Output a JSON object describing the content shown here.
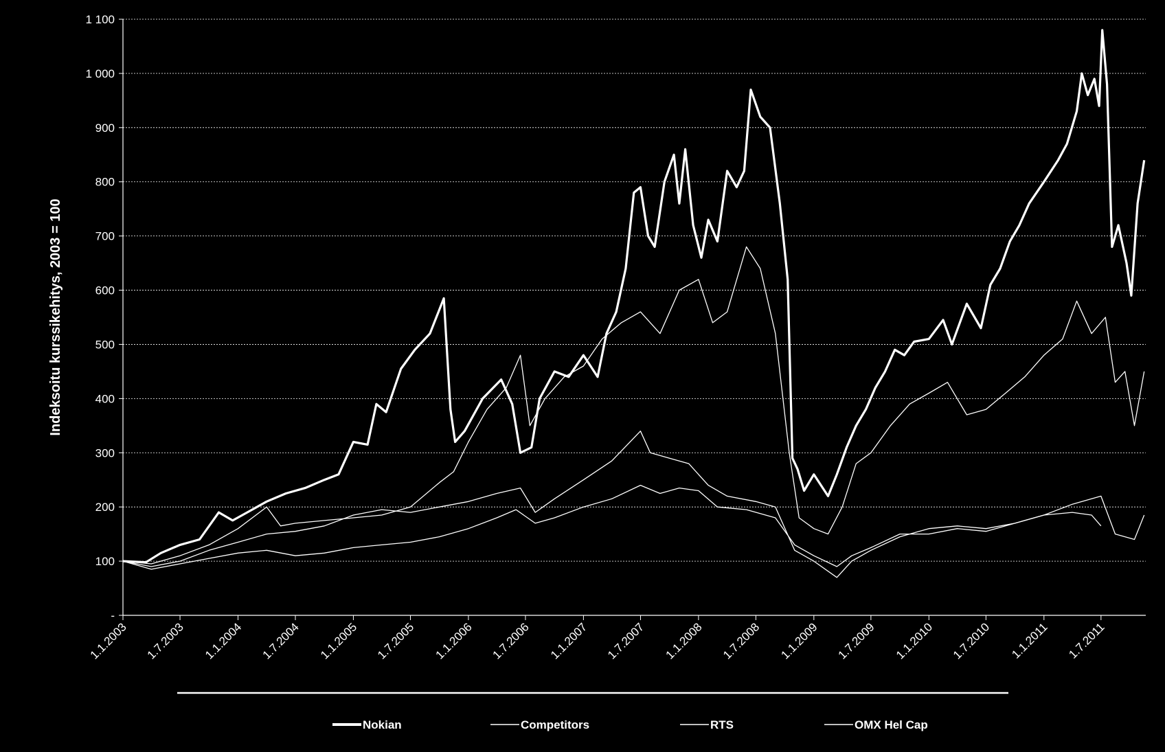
{
  "chart_data": {
    "type": "line",
    "title": "",
    "xlabel": "",
    "ylabel": "Indeksoitu kurssikehitys, 2003 = 100",
    "ylim": [
      0,
      1100
    ],
    "y_ticks": [
      {
        "value": 0,
        "label": "-"
      },
      {
        "value": 100,
        "label": "100"
      },
      {
        "value": 200,
        "label": "200"
      },
      {
        "value": 300,
        "label": "300"
      },
      {
        "value": 400,
        "label": "400"
      },
      {
        "value": 500,
        "label": "500"
      },
      {
        "value": 600,
        "label": "600"
      },
      {
        "value": 700,
        "label": "700"
      },
      {
        "value": 800,
        "label": "800"
      },
      {
        "value": 900,
        "label": "900"
      },
      {
        "value": 1000,
        "label": "1 000"
      },
      {
        "value": 1100,
        "label": "1 100"
      }
    ],
    "xlim": [
      "2003-01-01",
      "2011-11-20"
    ],
    "x_ticks": [
      {
        "date": "2003-01-01",
        "label": "1.1.2003"
      },
      {
        "date": "2003-07-01",
        "label": "1.7.2003"
      },
      {
        "date": "2004-01-01",
        "label": "1.1.2004"
      },
      {
        "date": "2004-07-01",
        "label": "1.7.2004"
      },
      {
        "date": "2005-01-01",
        "label": "1.1.2005"
      },
      {
        "date": "2005-07-01",
        "label": "1.7.2005"
      },
      {
        "date": "2006-01-01",
        "label": "1.1.2006"
      },
      {
        "date": "2006-07-01",
        "label": "1.7.2006"
      },
      {
        "date": "2007-01-01",
        "label": "1.1.2007"
      },
      {
        "date": "2007-07-01",
        "label": "1.7.2007"
      },
      {
        "date": "2008-01-01",
        "label": "1.1.2008"
      },
      {
        "date": "2008-07-01",
        "label": "1.7.2008"
      },
      {
        "date": "2009-01-01",
        "label": "1.1.2009"
      },
      {
        "date": "2009-07-01",
        "label": "1.7.2009"
      },
      {
        "date": "2010-01-01",
        "label": "1.1.2010"
      },
      {
        "date": "2010-07-01",
        "label": "1.7.2010"
      },
      {
        "date": "2011-01-01",
        "label": "1.1.2011"
      },
      {
        "date": "2011-07-01",
        "label": "1.7.2011"
      }
    ],
    "grid": "horizontal",
    "legend_position": "bottom",
    "line_color": "#ffffff",
    "series": [
      {
        "name": "Nokian",
        "stroke_weight": "thick",
        "points": [
          [
            "2003-01-01",
            100
          ],
          [
            "2003-03-15",
            98
          ],
          [
            "2003-05-01",
            115
          ],
          [
            "2003-07-01",
            130
          ],
          [
            "2003-09-01",
            140
          ],
          [
            "2003-11-01",
            190
          ],
          [
            "2003-12-15",
            175
          ],
          [
            "2004-02-15",
            195
          ],
          [
            "2004-04-01",
            210
          ],
          [
            "2004-06-01",
            225
          ],
          [
            "2004-08-01",
            235
          ],
          [
            "2004-10-01",
            250
          ],
          [
            "2004-11-15",
            260
          ],
          [
            "2005-01-01",
            320
          ],
          [
            "2005-02-15",
            315
          ],
          [
            "2005-03-15",
            390
          ],
          [
            "2005-04-15",
            375
          ],
          [
            "2005-06-01",
            455
          ],
          [
            "2005-07-15",
            490
          ],
          [
            "2005-09-01",
            520
          ],
          [
            "2005-10-15",
            585
          ],
          [
            "2005-11-05",
            380
          ],
          [
            "2005-11-20",
            320
          ],
          [
            "2005-12-20",
            340
          ],
          [
            "2006-02-15",
            400
          ],
          [
            "2006-04-15",
            435
          ],
          [
            "2006-05-20",
            390
          ],
          [
            "2006-06-15",
            300
          ],
          [
            "2006-07-20",
            310
          ],
          [
            "2006-08-15",
            400
          ],
          [
            "2006-10-01",
            450
          ],
          [
            "2006-11-15",
            440
          ],
          [
            "2007-01-01",
            480
          ],
          [
            "2007-02-15",
            440
          ],
          [
            "2007-03-15",
            520
          ],
          [
            "2007-04-15",
            560
          ],
          [
            "2007-05-15",
            640
          ],
          [
            "2007-06-10",
            780
          ],
          [
            "2007-07-01",
            790
          ],
          [
            "2007-07-25",
            700
          ],
          [
            "2007-08-15",
            680
          ],
          [
            "2007-09-15",
            800
          ],
          [
            "2007-10-15",
            850
          ],
          [
            "2007-11-01",
            760
          ],
          [
            "2007-11-20",
            860
          ],
          [
            "2007-12-15",
            720
          ],
          [
            "2008-01-10",
            660
          ],
          [
            "2008-02-01",
            730
          ],
          [
            "2008-03-01",
            690
          ],
          [
            "2008-04-01",
            820
          ],
          [
            "2008-05-01",
            790
          ],
          [
            "2008-05-25",
            820
          ],
          [
            "2008-06-15",
            970
          ],
          [
            "2008-07-15",
            920
          ],
          [
            "2008-08-15",
            900
          ],
          [
            "2008-09-15",
            760
          ],
          [
            "2008-10-10",
            620
          ],
          [
            "2008-10-25",
            290
          ],
          [
            "2008-11-10",
            270
          ],
          [
            "2008-12-01",
            230
          ],
          [
            "2009-01-01",
            260
          ],
          [
            "2009-02-15",
            220
          ],
          [
            "2009-03-15",
            260
          ],
          [
            "2009-04-15",
            310
          ],
          [
            "2009-05-15",
            350
          ],
          [
            "2009-06-15",
            380
          ],
          [
            "2009-07-15",
            420
          ],
          [
            "2009-08-15",
            450
          ],
          [
            "2009-09-15",
            490
          ],
          [
            "2009-10-15",
            480
          ],
          [
            "2009-11-15",
            505
          ],
          [
            "2010-01-01",
            510
          ],
          [
            "2010-02-15",
            545
          ],
          [
            "2010-03-15",
            500
          ],
          [
            "2010-05-01",
            575
          ],
          [
            "2010-06-15",
            530
          ],
          [
            "2010-07-15",
            610
          ],
          [
            "2010-08-15",
            640
          ],
          [
            "2010-09-15",
            690
          ],
          [
            "2010-10-15",
            720
          ],
          [
            "2010-11-15",
            760
          ],
          [
            "2011-01-01",
            800
          ],
          [
            "2011-02-15",
            840
          ],
          [
            "2011-03-15",
            870
          ],
          [
            "2011-04-15",
            930
          ],
          [
            "2011-05-01",
            1000
          ],
          [
            "2011-05-20",
            960
          ],
          [
            "2011-06-10",
            990
          ],
          [
            "2011-06-25",
            940
          ],
          [
            "2011-07-05",
            1080
          ],
          [
            "2011-07-20",
            980
          ],
          [
            "2011-08-05",
            680
          ],
          [
            "2011-08-25",
            720
          ],
          [
            "2011-09-20",
            650
          ],
          [
            "2011-10-05",
            590
          ],
          [
            "2011-10-25",
            760
          ],
          [
            "2011-11-15",
            840
          ]
        ]
      },
      {
        "name": "Competitors",
        "stroke_weight": "thin",
        "points": [
          [
            "2003-01-01",
            100
          ],
          [
            "2003-04-01",
            90
          ],
          [
            "2003-07-01",
            100
          ],
          [
            "2003-10-01",
            120
          ],
          [
            "2004-01-01",
            135
          ],
          [
            "2004-04-01",
            150
          ],
          [
            "2004-07-01",
            155
          ],
          [
            "2004-10-01",
            165
          ],
          [
            "2005-01-01",
            185
          ],
          [
            "2005-04-01",
            195
          ],
          [
            "2005-07-01",
            190
          ],
          [
            "2005-10-01",
            200
          ],
          [
            "2006-01-01",
            210
          ],
          [
            "2006-04-01",
            225
          ],
          [
            "2006-06-15",
            235
          ],
          [
            "2006-08-01",
            190
          ],
          [
            "2006-10-01",
            215
          ],
          [
            "2007-01-01",
            250
          ],
          [
            "2007-04-01",
            285
          ],
          [
            "2007-07-01",
            340
          ],
          [
            "2007-08-01",
            300
          ],
          [
            "2007-10-01",
            290
          ],
          [
            "2007-12-01",
            280
          ],
          [
            "2008-02-01",
            240
          ],
          [
            "2008-04-01",
            220
          ],
          [
            "2008-07-01",
            210
          ],
          [
            "2008-09-01",
            200
          ],
          [
            "2008-11-01",
            120
          ],
          [
            "2009-01-01",
            100
          ],
          [
            "2009-03-15",
            70
          ],
          [
            "2009-05-01",
            100
          ],
          [
            "2009-07-01",
            120
          ],
          [
            "2009-10-01",
            145
          ],
          [
            "2010-01-01",
            160
          ],
          [
            "2010-04-01",
            165
          ],
          [
            "2010-07-01",
            160
          ],
          [
            "2010-10-01",
            170
          ],
          [
            "2011-01-01",
            185
          ],
          [
            "2011-04-01",
            205
          ],
          [
            "2011-07-01",
            220
          ],
          [
            "2011-08-15",
            150
          ],
          [
            "2011-10-15",
            140
          ],
          [
            "2011-11-15",
            185
          ]
        ]
      },
      {
        "name": "RTS",
        "stroke_weight": "thin",
        "points": [
          [
            "2003-01-01",
            100
          ],
          [
            "2003-04-01",
            95
          ],
          [
            "2003-07-01",
            110
          ],
          [
            "2003-10-01",
            130
          ],
          [
            "2004-01-01",
            160
          ],
          [
            "2004-04-01",
            200
          ],
          [
            "2004-05-15",
            165
          ],
          [
            "2004-07-01",
            170
          ],
          [
            "2004-10-01",
            175
          ],
          [
            "2005-01-01",
            180
          ],
          [
            "2005-04-01",
            185
          ],
          [
            "2005-07-01",
            200
          ],
          [
            "2005-10-01",
            245
          ],
          [
            "2005-11-15",
            265
          ],
          [
            "2006-01-01",
            320
          ],
          [
            "2006-03-01",
            380
          ],
          [
            "2006-05-01",
            420
          ],
          [
            "2006-06-15",
            480
          ],
          [
            "2006-07-15",
            350
          ],
          [
            "2006-09-01",
            400
          ],
          [
            "2006-11-01",
            440
          ],
          [
            "2007-01-01",
            460
          ],
          [
            "2007-03-01",
            510
          ],
          [
            "2007-05-01",
            540
          ],
          [
            "2007-07-01",
            560
          ],
          [
            "2007-09-01",
            520
          ],
          [
            "2007-11-01",
            600
          ],
          [
            "2008-01-01",
            620
          ],
          [
            "2008-02-15",
            540
          ],
          [
            "2008-04-01",
            560
          ],
          [
            "2008-06-01",
            680
          ],
          [
            "2008-07-15",
            640
          ],
          [
            "2008-09-01",
            520
          ],
          [
            "2008-10-15",
            300
          ],
          [
            "2008-11-15",
            180
          ],
          [
            "2009-01-01",
            160
          ],
          [
            "2009-02-15",
            150
          ],
          [
            "2009-04-01",
            200
          ],
          [
            "2009-05-15",
            280
          ],
          [
            "2009-07-01",
            300
          ],
          [
            "2009-09-01",
            350
          ],
          [
            "2009-11-01",
            390
          ],
          [
            "2010-01-01",
            410
          ],
          [
            "2010-03-01",
            430
          ],
          [
            "2010-05-01",
            370
          ],
          [
            "2010-07-01",
            380
          ],
          [
            "2010-09-01",
            410
          ],
          [
            "2010-11-01",
            440
          ],
          [
            "2011-01-01",
            480
          ],
          [
            "2011-03-01",
            510
          ],
          [
            "2011-04-15",
            580
          ],
          [
            "2011-06-01",
            520
          ],
          [
            "2011-07-15",
            550
          ],
          [
            "2011-08-15",
            430
          ],
          [
            "2011-09-15",
            450
          ],
          [
            "2011-10-15",
            350
          ],
          [
            "2011-11-15",
            450
          ]
        ]
      },
      {
        "name": "OMX Hel Cap",
        "stroke_weight": "thin",
        "points": [
          [
            "2003-01-01",
            100
          ],
          [
            "2003-04-01",
            85
          ],
          [
            "2003-07-01",
            95
          ],
          [
            "2003-10-01",
            105
          ],
          [
            "2004-01-01",
            115
          ],
          [
            "2004-04-01",
            120
          ],
          [
            "2004-07-01",
            110
          ],
          [
            "2004-10-01",
            115
          ],
          [
            "2005-01-01",
            125
          ],
          [
            "2005-04-01",
            130
          ],
          [
            "2005-07-01",
            135
          ],
          [
            "2005-10-01",
            145
          ],
          [
            "2006-01-01",
            160
          ],
          [
            "2006-04-01",
            180
          ],
          [
            "2006-06-01",
            195
          ],
          [
            "2006-08-01",
            170
          ],
          [
            "2006-10-01",
            180
          ],
          [
            "2007-01-01",
            200
          ],
          [
            "2007-04-01",
            215
          ],
          [
            "2007-07-01",
            240
          ],
          [
            "2007-09-01",
            225
          ],
          [
            "2007-11-01",
            235
          ],
          [
            "2008-01-01",
            230
          ],
          [
            "2008-03-01",
            200
          ],
          [
            "2008-06-01",
            195
          ],
          [
            "2008-09-01",
            180
          ],
          [
            "2008-11-01",
            130
          ],
          [
            "2009-01-01",
            110
          ],
          [
            "2009-03-15",
            90
          ],
          [
            "2009-05-01",
            110
          ],
          [
            "2009-07-01",
            125
          ],
          [
            "2009-10-01",
            150
          ],
          [
            "2010-01-01",
            150
          ],
          [
            "2010-04-01",
            160
          ],
          [
            "2010-07-01",
            155
          ],
          [
            "2010-10-01",
            170
          ],
          [
            "2011-01-01",
            185
          ],
          [
            "2011-04-01",
            190
          ],
          [
            "2011-06-01",
            185
          ],
          [
            "2011-07-01",
            165
          ]
        ]
      }
    ]
  }
}
